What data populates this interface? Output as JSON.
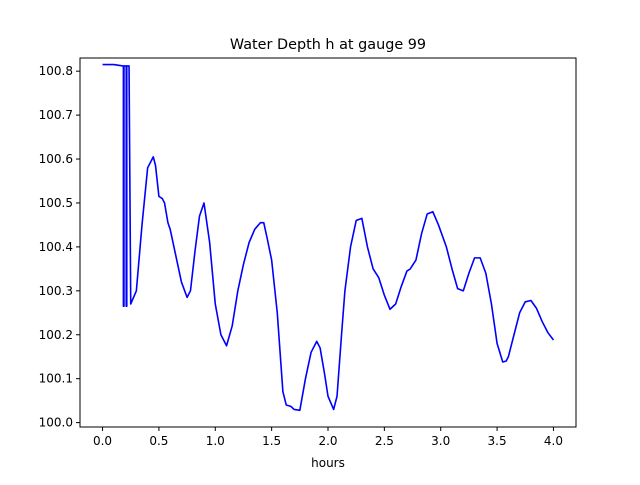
{
  "chart_data": {
    "type": "line",
    "title": "Water Depth h at gauge 99",
    "xlabel": "hours",
    "ylabel": "",
    "xlim": [
      -0.2,
      4.2
    ],
    "ylim": [
      99.99,
      100.83
    ],
    "grid": false,
    "x_ticks": [
      0.0,
      0.5,
      1.0,
      1.5,
      2.0,
      2.5,
      3.0,
      3.5,
      4.0
    ],
    "x_tick_labels": [
      "0.0",
      "0.5",
      "1.0",
      "1.5",
      "2.0",
      "2.5",
      "3.0",
      "3.5",
      "4.0"
    ],
    "y_ticks": [
      100.0,
      100.1,
      100.2,
      100.3,
      100.4,
      100.5,
      100.6,
      100.7,
      100.8
    ],
    "y_tick_labels": [
      "100.0",
      "100.1",
      "100.2",
      "100.3",
      "100.4",
      "100.5",
      "100.6",
      "100.7",
      "100.8"
    ],
    "series": [
      {
        "name": "",
        "color": "#0000ff",
        "x": [
          0.0,
          0.1,
          0.18,
          0.185,
          0.185,
          0.19,
          0.19,
          0.21,
          0.21,
          0.215,
          0.215,
          0.235,
          0.25,
          0.3,
          0.35,
          0.4,
          0.45,
          0.47,
          0.5,
          0.53,
          0.55,
          0.58,
          0.6,
          0.65,
          0.7,
          0.75,
          0.78,
          0.82,
          0.86,
          0.9,
          0.95,
          1.0,
          1.05,
          1.1,
          1.15,
          1.2,
          1.25,
          1.3,
          1.35,
          1.4,
          1.43,
          1.46,
          1.5,
          1.55,
          1.6,
          1.63,
          1.67,
          1.7,
          1.75,
          1.8,
          1.85,
          1.9,
          1.93,
          1.97,
          2.0,
          2.05,
          2.08,
          2.12,
          2.15,
          2.2,
          2.25,
          2.3,
          2.35,
          2.4,
          2.45,
          2.5,
          2.55,
          2.6,
          2.65,
          2.7,
          2.73,
          2.78,
          2.83,
          2.88,
          2.93,
          2.98,
          3.05,
          3.1,
          3.15,
          3.2,
          3.25,
          3.3,
          3.35,
          3.4,
          3.45,
          3.5,
          3.55,
          3.58,
          3.6,
          3.65,
          3.7,
          3.75,
          3.8,
          3.85,
          3.9,
          3.95,
          4.0
        ],
        "y": [
          100.815,
          100.815,
          100.812,
          100.812,
          100.265,
          100.265,
          100.812,
          100.812,
          100.265,
          100.265,
          100.812,
          100.812,
          100.27,
          100.3,
          100.45,
          100.58,
          100.605,
          100.585,
          100.515,
          100.51,
          100.5,
          100.455,
          100.44,
          100.38,
          100.32,
          100.285,
          100.3,
          100.39,
          100.47,
          100.5,
          100.41,
          100.27,
          100.2,
          100.175,
          100.22,
          100.3,
          100.36,
          100.41,
          100.44,
          100.455,
          100.455,
          100.42,
          100.37,
          100.25,
          100.07,
          100.04,
          100.037,
          100.03,
          100.028,
          100.1,
          100.16,
          100.185,
          100.17,
          100.11,
          100.06,
          100.03,
          100.06,
          100.2,
          100.3,
          100.4,
          100.46,
          100.465,
          100.4,
          100.35,
          100.33,
          100.29,
          100.258,
          100.27,
          100.31,
          100.345,
          100.35,
          100.37,
          100.43,
          100.475,
          100.48,
          100.45,
          100.4,
          100.35,
          100.305,
          100.3,
          100.34,
          100.375,
          100.375,
          100.34,
          100.27,
          100.18,
          100.138,
          100.14,
          100.15,
          100.2,
          100.25,
          100.275,
          100.278,
          100.26,
          100.23,
          100.205,
          100.188
        ]
      }
    ]
  }
}
